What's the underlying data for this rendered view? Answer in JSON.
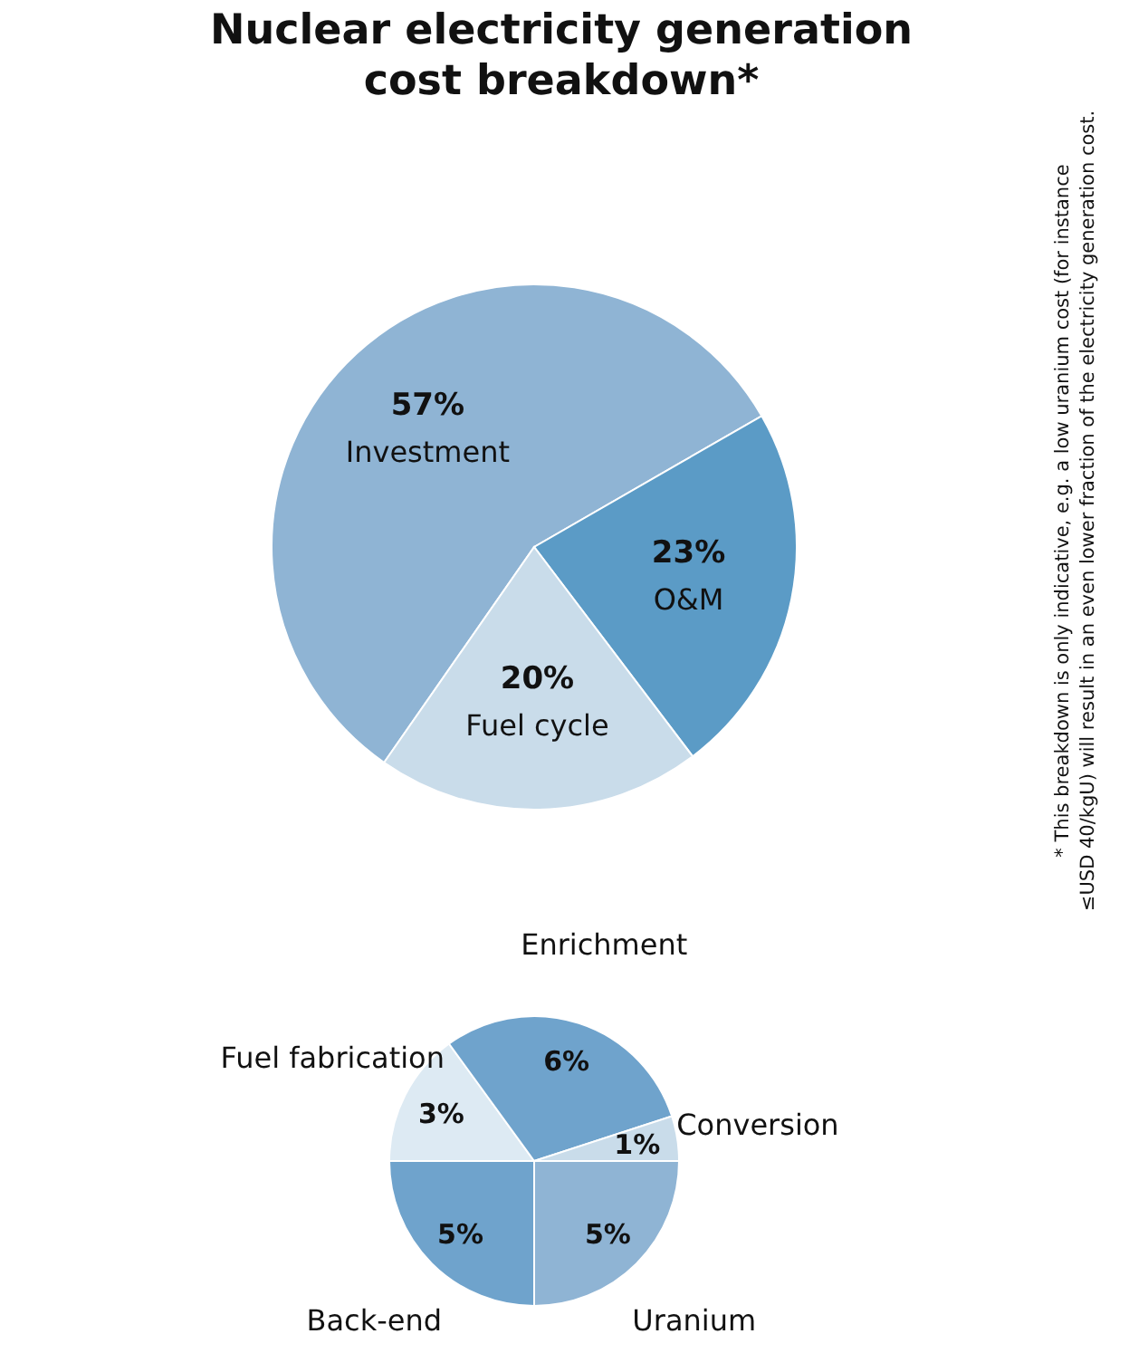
{
  "chart_data": [
    {
      "type": "pie",
      "title": "Nuclear electricity generation cost breakdown*",
      "categories": [
        "Investment",
        "O&M",
        "Fuel cycle"
      ],
      "values": [
        57,
        23,
        20
      ],
      "colors": [
        "#8fb4d4",
        "#5b9bc6",
        "#c9dcea"
      ],
      "value_labels": [
        "57%",
        "23%",
        "20%"
      ],
      "legend": false,
      "annotations": [
        "* This breakdown is only indicative, e.g. a low uranium cost (for instance",
        "≤USD 40/kgU) will result in an even lower fraction of the electricity generation cost."
      ]
    },
    {
      "type": "pie",
      "categories": [
        "Back-end",
        "Fuel fabrication",
        "Enrichment",
        "Conversion",
        "Uranium"
      ],
      "values": [
        5,
        3,
        6,
        1,
        5
      ],
      "colors": [
        "#6fa3cc",
        "#ddeaf3",
        "#6fa3cc",
        "#c9dcea",
        "#8fb4d4"
      ],
      "value_labels": [
        "5%",
        "3%",
        "6%",
        "1%",
        "5%"
      ],
      "legend": false
    }
  ]
}
